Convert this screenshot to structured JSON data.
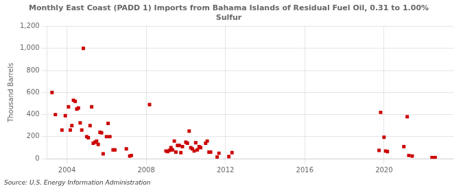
{
  "chart_data": {
    "type": "scatter",
    "title": "Monthly East Coast (PADD 1) Imports from Bahama Islands of Residual Fuel Oil, 0.31 to 1.00%\nSulfur",
    "ylabel": "Thousand Barrels",
    "source": "Source: U.S. Energy Information Administration",
    "color": "#cc0000",
    "marker": "square",
    "grid": true,
    "xlim": [
      2003.0,
      2023.5
    ],
    "xticks": [
      2004,
      2008,
      2012,
      2016,
      2020
    ],
    "ylim": [
      0,
      1200
    ],
    "yticks": [
      0,
      200,
      400,
      600,
      800,
      {
        "value": 1000,
        "label": "1,000"
      },
      {
        "value": 1200,
        "label": "1,200"
      }
    ],
    "x": [
      2003.25,
      2003.42,
      2003.75,
      2003.92,
      2004.08,
      2004.17,
      2004.25,
      2004.33,
      2004.42,
      2004.5,
      2004.58,
      2004.67,
      2004.75,
      2004.83,
      2005.0,
      2005.08,
      2005.17,
      2005.25,
      2005.33,
      2005.42,
      2005.5,
      2005.58,
      2005.67,
      2005.75,
      2005.83,
      2006.0,
      2006.08,
      2006.17,
      2006.33,
      2006.42,
      2007.0,
      2007.17,
      2007.25,
      2008.17,
      2009.0,
      2009.08,
      2009.17,
      2009.25,
      2009.33,
      2009.42,
      2009.5,
      2009.58,
      2009.67,
      2009.75,
      2009.83,
      2010.0,
      2010.08,
      2010.17,
      2010.25,
      2010.33,
      2010.42,
      2010.5,
      2010.58,
      2010.67,
      2010.75,
      2011.0,
      2011.08,
      2011.17,
      2011.25,
      2011.58,
      2011.67,
      2012.17,
      2012.33,
      2019.75,
      2019.83,
      2020.0,
      2020.08,
      2020.17,
      2021.0,
      2021.17,
      2021.25,
      2021.42,
      2022.42,
      2022.58
    ],
    "values": [
      600,
      400,
      260,
      390,
      470,
      260,
      300,
      530,
      520,
      450,
      460,
      325,
      260,
      1000,
      200,
      190,
      300,
      470,
      140,
      150,
      160,
      130,
      240,
      235,
      45,
      200,
      320,
      200,
      80,
      80,
      90,
      25,
      30,
      490,
      70,
      65,
      75,
      100,
      80,
      160,
      60,
      120,
      120,
      55,
      110,
      150,
      140,
      250,
      100,
      90,
      70,
      145,
      80,
      110,
      100,
      140,
      160,
      60,
      60,
      15,
      50,
      20,
      55,
      75,
      420,
      195,
      70,
      65,
      110,
      380,
      30,
      25,
      10,
      10
    ]
  }
}
